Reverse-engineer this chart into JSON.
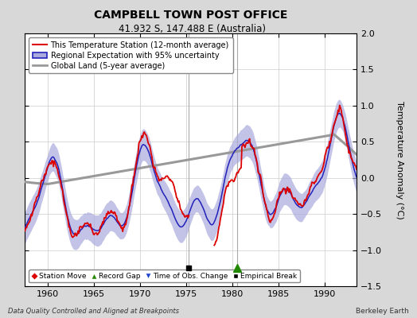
{
  "title": "CAMPBELL TOWN POST OFFICE",
  "subtitle": "41.932 S, 147.488 E (Australia)",
  "footer_left": "Data Quality Controlled and Aligned at Breakpoints",
  "footer_right": "Berkeley Earth",
  "ylabel": "Temperature Anomaly (°C)",
  "ylim": [
    -1.5,
    2.0
  ],
  "xlim": [
    1957.5,
    1993.5
  ],
  "xticks": [
    1960,
    1965,
    1970,
    1975,
    1980,
    1985,
    1990
  ],
  "yticks": [
    -1.5,
    -1.0,
    -0.5,
    0.0,
    0.5,
    1.0,
    1.5,
    2.0
  ],
  "bg_color": "#d8d8d8",
  "plot_bg_color": "#ffffff",
  "red_line_color": "#dd0000",
  "blue_line_color": "#2222bb",
  "blue_fill_color": "#aaaadd",
  "gray_line_color": "#999999",
  "vline_color": "#aaaaaa",
  "empirical_break_year": 1975.3,
  "obs_change_year": 1980.5,
  "legend_labels": [
    "This Temperature Station (12-month average)",
    "Regional Expectation with 95% uncertainty",
    "Global Land (5-year average)"
  ],
  "marker_legend_labels": [
    "Station Move",
    "Record Gap",
    "Time of Obs. Change",
    "Empirical Break"
  ]
}
